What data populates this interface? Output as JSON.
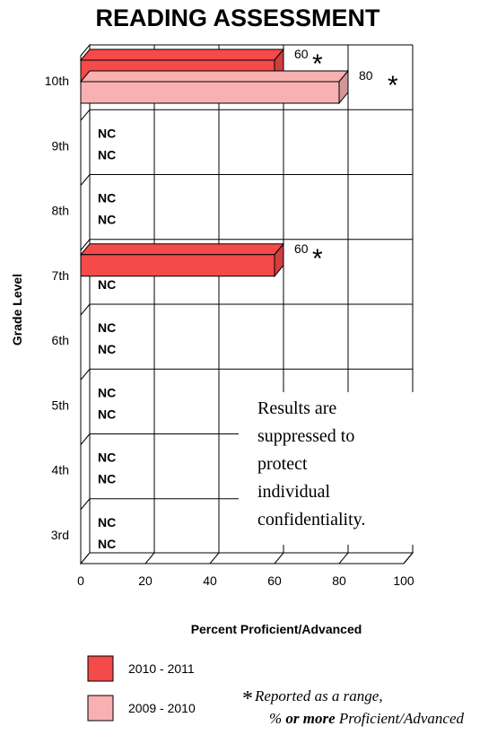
{
  "chart_data": {
    "type": "bar",
    "orientation": "horizontal",
    "title": "READING ASSESSMENT",
    "xlabel": "Percent Proficient/Advanced",
    "ylabel": "Grade Level",
    "xlim": [
      0,
      100
    ],
    "x_ticks": [
      "0",
      "20",
      "40",
      "60",
      "80",
      "100"
    ],
    "categories": [
      "10th",
      "9th",
      "8th",
      "7th",
      "6th",
      "5th",
      "4th",
      "3rd"
    ],
    "series": [
      {
        "name": "2010 - 2011",
        "color": "#f44a4a",
        "values": [
          60,
          null,
          null,
          60,
          null,
          null,
          null,
          null
        ]
      },
      {
        "name": "2009 - 2010",
        "color": "#f9b0b0",
        "values": [
          80,
          null,
          null,
          null,
          null,
          null,
          null,
          null
        ]
      }
    ],
    "data_labels": {
      "2010 - 2011": [
        "60",
        "",
        "",
        "60",
        "",
        "",
        "",
        ""
      ],
      "2009 - 2010": [
        "80",
        "",
        "",
        "",
        "",
        "",
        "",
        ""
      ]
    },
    "not_computed_label": "NC",
    "not_computed": {
      "2010 - 2011": [
        false,
        true,
        true,
        false,
        true,
        true,
        true,
        true
      ],
      "2009 - 2010": [
        false,
        true,
        true,
        true,
        true,
        true,
        true,
        true
      ]
    },
    "range_marker": "*",
    "grid": true,
    "legend_position": "bottom-left",
    "annotation": [
      "Results are",
      "suppressed to",
      "protect",
      "individual",
      "confidentiality."
    ],
    "footnote": {
      "marker": "*",
      "line1": "Reported as a range,",
      "line2_prefix": "% ",
      "line2_bold": "or more",
      "line2_suffix": " Proficient/Advanced"
    }
  }
}
